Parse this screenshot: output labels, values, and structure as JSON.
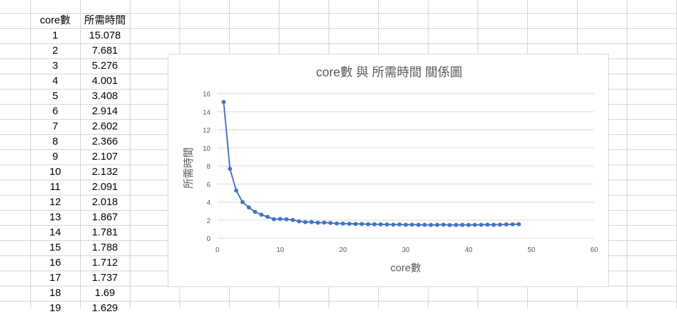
{
  "sheet": {
    "headers": [
      "core數",
      "所需時間"
    ],
    "rows": [
      [
        "1",
        "15.078"
      ],
      [
        "2",
        "7.681"
      ],
      [
        "3",
        "5.276"
      ],
      [
        "4",
        "4.001"
      ],
      [
        "5",
        "3.408"
      ],
      [
        "6",
        "2.914"
      ],
      [
        "7",
        "2.602"
      ],
      [
        "8",
        "2.366"
      ],
      [
        "9",
        "2.107"
      ],
      [
        "10",
        "2.132"
      ],
      [
        "11",
        "2.091"
      ],
      [
        "12",
        "2.018"
      ],
      [
        "13",
        "1.867"
      ],
      [
        "14",
        "1.781"
      ],
      [
        "15",
        "1.788"
      ],
      [
        "16",
        "1.712"
      ],
      [
        "17",
        "1.737"
      ],
      [
        "18",
        "1.69"
      ],
      [
        "19",
        "1.629"
      ]
    ]
  },
  "colors": {
    "gridline": "#d4d4d4",
    "series": "#4472c4",
    "chart_gridline": "#d9d9d9",
    "axis_text": "#595959"
  },
  "chart_data": {
    "type": "scatter",
    "title": "core數 與 所需時間 關係圖",
    "xlabel": "core數",
    "ylabel": "所需時間",
    "xlim": [
      0,
      60
    ],
    "ylim": [
      0,
      16
    ],
    "xticks": [
      0,
      10,
      20,
      30,
      40,
      50,
      60
    ],
    "yticks": [
      0,
      2,
      4,
      6,
      8,
      10,
      12,
      14,
      16
    ],
    "grid": true,
    "legend": "none",
    "series": [
      {
        "x": [
          1,
          2,
          3,
          4,
          5,
          6,
          7,
          8,
          9,
          10,
          11,
          12,
          13,
          14,
          15,
          16,
          17,
          18,
          19,
          20,
          21,
          22,
          23,
          24,
          25,
          26,
          27,
          28,
          29,
          30,
          31,
          32,
          33,
          34,
          35,
          36,
          37,
          38,
          39,
          40,
          41,
          42,
          43,
          44,
          45,
          46,
          47,
          48
        ],
        "y": [
          15.078,
          7.681,
          5.276,
          4.001,
          3.408,
          2.914,
          2.602,
          2.366,
          2.107,
          2.132,
          2.091,
          2.018,
          1.867,
          1.781,
          1.788,
          1.712,
          1.737,
          1.69,
          1.629,
          1.62,
          1.6,
          1.58,
          1.57,
          1.55,
          1.54,
          1.53,
          1.52,
          1.5,
          1.52,
          1.49,
          1.5,
          1.48,
          1.49,
          1.47,
          1.48,
          1.5,
          1.46,
          1.47,
          1.48,
          1.47,
          1.48,
          1.49,
          1.5,
          1.49,
          1.5,
          1.52,
          1.53,
          1.55
        ]
      }
    ]
  }
}
